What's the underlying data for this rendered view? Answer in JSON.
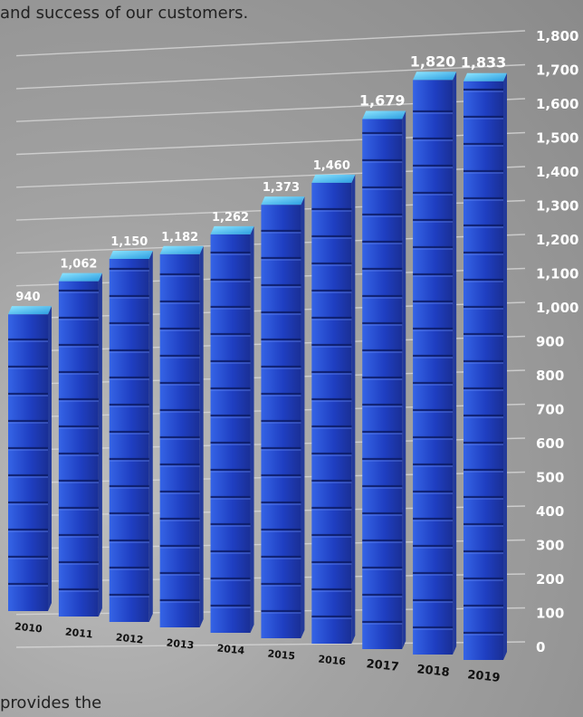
{
  "captions": {
    "top": "and success of our customers.",
    "bottom": "provides  the"
  },
  "colors": {
    "bar_front": "#1f3fc2",
    "bar_top": "#45c8f5",
    "bar_side": "#233a9a",
    "grid": "#d8d8d8",
    "label": "#ffffff",
    "axis_text": "#ffffff"
  },
  "chart_data": {
    "type": "bar",
    "title": "",
    "xlabel": "",
    "ylabel": "",
    "categories": [
      "2010",
      "2011",
      "2012",
      "2013",
      "2014",
      "2015",
      "2016",
      "2017",
      "2018",
      "2019"
    ],
    "values": [
      940,
      1062,
      1150,
      1182,
      1262,
      1373,
      1460,
      1679,
      1820,
      1833
    ],
    "value_labels": [
      "940",
      "1,062",
      "1,150",
      "1,182",
      "1,262",
      "1,373",
      "1,460",
      "1,679",
      "1,820",
      "1,833"
    ],
    "ylim": [
      0,
      1800
    ],
    "y_ticks": [
      0,
      100,
      200,
      300,
      400,
      500,
      600,
      700,
      800,
      900,
      1000,
      1100,
      1200,
      1300,
      1400,
      1500,
      1600,
      1700,
      1800
    ],
    "y_tick_labels": [
      "0",
      "100",
      "200",
      "300",
      "400",
      "500",
      "600",
      "700",
      "800",
      "900",
      "1,000",
      "1,100",
      "1,200",
      "1,300",
      "1,400",
      "1,500",
      "1,600",
      "1,700",
      "1,800"
    ],
    "grid": true,
    "legend": "none"
  }
}
